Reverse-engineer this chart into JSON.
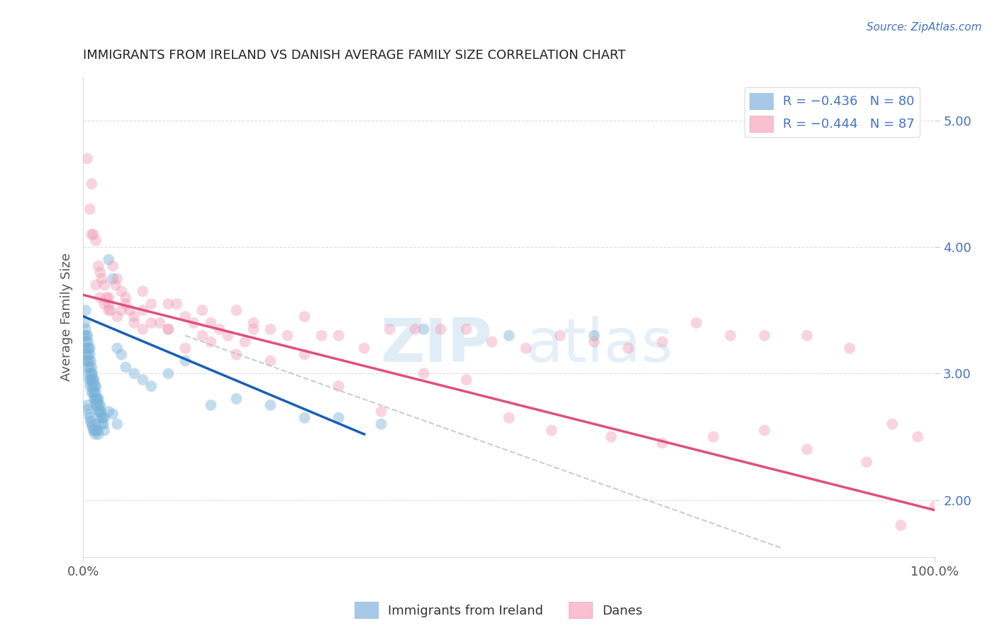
{
  "title": "IMMIGRANTS FROM IRELAND VS DANISH AVERAGE FAMILY SIZE CORRELATION CHART",
  "source_text": "Source: ZipAtlas.com",
  "ylabel": "Average Family Size",
  "xmin": 0.0,
  "xmax": 100.0,
  "ymin": 1.55,
  "ymax": 5.35,
  "yticks": [
    2.0,
    3.0,
    4.0,
    5.0
  ],
  "blue_scatter_x": [
    0.1,
    0.2,
    0.2,
    0.3,
    0.3,
    0.3,
    0.4,
    0.4,
    0.4,
    0.5,
    0.5,
    0.5,
    0.5,
    0.6,
    0.6,
    0.6,
    0.7,
    0.7,
    0.7,
    0.8,
    0.8,
    0.8,
    0.8,
    0.9,
    0.9,
    0.9,
    1.0,
    1.0,
    1.0,
    1.0,
    1.1,
    1.1,
    1.1,
    1.2,
    1.2,
    1.2,
    1.3,
    1.3,
    1.3,
    1.4,
    1.4,
    1.5,
    1.5,
    1.5,
    1.5,
    1.6,
    1.6,
    1.7,
    1.7,
    1.8,
    1.8,
    1.9,
    1.9,
    2.0,
    2.0,
    2.1,
    2.2,
    2.3,
    2.4,
    2.5,
    3.0,
    3.5,
    4.0,
    4.5,
    5.0,
    6.0,
    7.0,
    8.0,
    10.0,
    12.0,
    15.0,
    18.0,
    22.0,
    26.0,
    30.0,
    35.0,
    40.0,
    50.0,
    60.0
  ],
  "blue_scatter_y": [
    3.3,
    3.4,
    3.2,
    3.35,
    3.1,
    3.5,
    3.25,
    3.15,
    3.3,
    3.2,
    3.05,
    3.3,
    3.1,
    3.15,
    3.0,
    3.25,
    3.1,
    3.2,
    2.95,
    3.05,
    3.15,
    2.9,
    3.2,
    3.0,
    2.95,
    3.1,
    2.95,
    3.05,
    2.85,
    3.0,
    2.9,
    3.0,
    2.95,
    2.85,
    2.9,
    2.95,
    2.8,
    2.95,
    2.85,
    2.8,
    2.9,
    2.85,
    2.75,
    2.8,
    2.9,
    2.8,
    2.75,
    2.75,
    2.8,
    2.7,
    2.8,
    2.75,
    2.7,
    2.7,
    2.75,
    2.7,
    2.65,
    2.65,
    2.6,
    2.65,
    3.9,
    3.75,
    3.2,
    3.15,
    3.05,
    3.0,
    2.95,
    2.9,
    3.0,
    3.1,
    2.75,
    2.8,
    2.75,
    2.65,
    2.65,
    2.6,
    3.35,
    3.3,
    3.3
  ],
  "blue_low_x": [
    0.5,
    0.6,
    0.7,
    0.8,
    0.9,
    1.0,
    1.1,
    1.2,
    1.3,
    1.4,
    1.5,
    1.6,
    1.7,
    1.8,
    2.0,
    2.2,
    2.5,
    3.0,
    3.5,
    4.0
  ],
  "blue_low_y": [
    2.75,
    2.72,
    2.68,
    2.65,
    2.62,
    2.6,
    2.58,
    2.55,
    2.55,
    2.52,
    2.6,
    2.55,
    2.55,
    2.52,
    2.65,
    2.6,
    2.55,
    2.7,
    2.68,
    2.6
  ],
  "pink_scatter_x": [
    0.5,
    0.8,
    1.0,
    1.2,
    1.5,
    1.8,
    2.0,
    2.2,
    2.5,
    2.8,
    3.0,
    3.2,
    3.5,
    3.8,
    4.0,
    4.5,
    5.0,
    5.5,
    6.0,
    7.0,
    8.0,
    9.0,
    10.0,
    11.0,
    12.0,
    13.0,
    14.0,
    15.0,
    16.0,
    17.0,
    18.0,
    19.0,
    20.0,
    22.0,
    24.0,
    26.0,
    28.0,
    30.0,
    33.0,
    36.0,
    39.0,
    42.0,
    45.0,
    48.0,
    52.0,
    56.0,
    60.0,
    64.0,
    68.0,
    72.0,
    76.0,
    80.0,
    85.0,
    90.0,
    95.0,
    1.0,
    1.5,
    2.0,
    2.5,
    3.0,
    4.0,
    5.0,
    6.0,
    7.0,
    8.0,
    10.0,
    12.0,
    15.0,
    18.0,
    22.0,
    26.0,
    30.0,
    35.0,
    40.0,
    45.0,
    50.0,
    55.0,
    62.0,
    68.0,
    74.0,
    80.0,
    85.0,
    92.0,
    96.0,
    98.0,
    100.0,
    3.0,
    4.5,
    7.0,
    10.0,
    14.0,
    20.0
  ],
  "pink_scatter_y": [
    4.7,
    4.3,
    4.5,
    4.1,
    4.05,
    3.85,
    3.8,
    3.75,
    3.7,
    3.6,
    3.55,
    3.5,
    3.85,
    3.7,
    3.75,
    3.65,
    3.6,
    3.5,
    3.45,
    3.5,
    3.55,
    3.4,
    3.35,
    3.55,
    3.45,
    3.4,
    3.5,
    3.4,
    3.35,
    3.3,
    3.5,
    3.25,
    3.4,
    3.35,
    3.3,
    3.45,
    3.3,
    3.3,
    3.2,
    3.35,
    3.35,
    3.35,
    3.35,
    3.25,
    3.2,
    3.3,
    3.25,
    3.2,
    3.25,
    3.4,
    3.3,
    3.3,
    3.3,
    3.2,
    2.6,
    4.1,
    3.7,
    3.6,
    3.55,
    3.5,
    3.45,
    3.55,
    3.4,
    3.35,
    3.4,
    3.35,
    3.2,
    3.25,
    3.15,
    3.1,
    3.15,
    2.9,
    2.7,
    3.0,
    2.95,
    2.65,
    2.55,
    2.5,
    2.45,
    2.5,
    2.55,
    2.4,
    2.3,
    1.8,
    2.5,
    1.95,
    3.6,
    3.5,
    3.65,
    3.55,
    3.3,
    3.35
  ],
  "blue_line_x": [
    0.1,
    33.0
  ],
  "blue_line_y": [
    3.45,
    2.52
  ],
  "pink_line_x": [
    0.1,
    100.0
  ],
  "pink_line_y": [
    3.62,
    1.92
  ],
  "dashed_line_x": [
    12.0,
    82.0
  ],
  "dashed_line_y": [
    3.3,
    1.62
  ],
  "watermark_zip": "ZIP",
  "watermark_atlas": "atlas",
  "title_color": "#222222",
  "axis_label_color": "#555555",
  "tick_color": "#555555",
  "legend_text_color": "#4472c4",
  "grid_color": "#cccccc",
  "blue_color": "#7ab3d9",
  "pink_color": "#f0a0bc",
  "blue_line_color": "#1a5fb4",
  "pink_line_color": "#e0507a",
  "source_color": "#4472c4"
}
